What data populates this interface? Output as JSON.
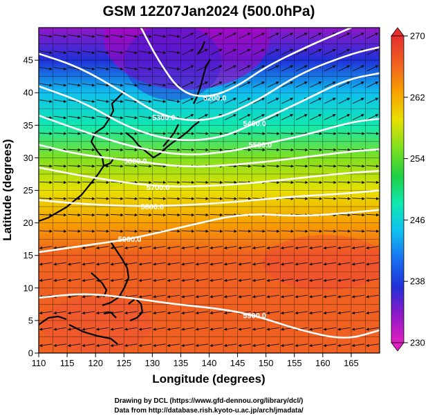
{
  "chart_data": {
    "type": "heatmap",
    "title": "GSM 12Z07Jan2024 (500.0hPa)",
    "xlabel": "Longitude (degrees)",
    "ylabel": "Latitude  (degrees)",
    "xlim": [
      110,
      170
    ],
    "ylim": [
      0,
      50
    ],
    "x_ticks": [
      110,
      115,
      120,
      125,
      130,
      135,
      140,
      145,
      150,
      155,
      160,
      165
    ],
    "y_ticks": [
      0,
      5,
      10,
      15,
      20,
      25,
      30,
      35,
      40,
      45
    ],
    "colorbar": {
      "range": [
        230,
        270
      ],
      "ticks": [
        230,
        238,
        246,
        254,
        262,
        270
      ],
      "colors": [
        "#e020c0",
        "#9018c8",
        "#2030d8",
        "#1870f0",
        "#10c0f0",
        "#10e8b0",
        "#20d040",
        "#80e020",
        "#e8e000",
        "#f8a000",
        "#f06020",
        "#e83030"
      ]
    },
    "temperature_bands": [
      {
        "lat": 50,
        "value": 232
      },
      {
        "lat": 45,
        "value": 236
      },
      {
        "lat": 40,
        "value": 244
      },
      {
        "lat": 35,
        "value": 249
      },
      {
        "lat": 30,
        "value": 254
      },
      {
        "lat": 25,
        "value": 259
      },
      {
        "lat": 20,
        "value": 263
      },
      {
        "lat": 15,
        "value": 266
      },
      {
        "lat": 10,
        "value": 267
      },
      {
        "lat": 5,
        "value": 267
      },
      {
        "lat": 0,
        "value": 267
      }
    ],
    "contour_labels": [
      {
        "text": "5200.0",
        "lon": 141,
        "lat": 39.2
      },
      {
        "text": "5300.0",
        "lon": 132,
        "lat": 36.2
      },
      {
        "text": "5400.0",
        "lon": 148,
        "lat": 35.3
      },
      {
        "text": "5500.0",
        "lon": 149,
        "lat": 32.0
      },
      {
        "text": "5600.0",
        "lon": 127,
        "lat": 29.5
      },
      {
        "text": "5700.0",
        "lon": 131,
        "lat": 25.5
      },
      {
        "text": "5800.0",
        "lon": 130,
        "lat": 22.5
      },
      {
        "text": "5900.0",
        "lon": 126,
        "lat": 17.5
      },
      {
        "text": "5900.0",
        "lon": 148,
        "lat": 5.8
      }
    ],
    "height_contours": [
      {
        "value": 5200,
        "points": [
          [
            128,
            50
          ],
          [
            131,
            45
          ],
          [
            135,
            40
          ],
          [
            140,
            39.2
          ],
          [
            145,
            41
          ],
          [
            150,
            44
          ],
          [
            157,
            47
          ],
          [
            165,
            50
          ]
        ]
      },
      {
        "value": 5300,
        "points": [
          [
            110,
            46
          ],
          [
            117,
            44
          ],
          [
            125,
            40
          ],
          [
            132,
            36.2
          ],
          [
            140,
            35.5
          ],
          [
            148,
            38.5
          ],
          [
            156,
            43
          ],
          [
            165,
            46
          ],
          [
            170,
            47
          ]
        ]
      },
      {
        "value": 5400,
        "points": [
          [
            110,
            41
          ],
          [
            118,
            38.5
          ],
          [
            126,
            34.5
          ],
          [
            134,
            32.5
          ],
          [
            142,
            33
          ],
          [
            148,
            35.3
          ],
          [
            156,
            38.5
          ],
          [
            164,
            42
          ],
          [
            170,
            43
          ]
        ]
      },
      {
        "value": 5500,
        "points": [
          [
            110,
            36.5
          ],
          [
            118,
            34
          ],
          [
            127,
            31.5
          ],
          [
            136,
            30.3
          ],
          [
            144,
            31
          ],
          [
            149,
            32
          ],
          [
            157,
            33.5
          ],
          [
            165,
            35.5
          ],
          [
            170,
            36
          ]
        ]
      },
      {
        "value": 5600,
        "points": [
          [
            110,
            32
          ],
          [
            117,
            30.5
          ],
          [
            127,
            29.5
          ],
          [
            136,
            28.5
          ],
          [
            146,
            29
          ],
          [
            156,
            30
          ],
          [
            165,
            31
          ],
          [
            170,
            31.3
          ]
        ]
      },
      {
        "value": 5700,
        "points": [
          [
            110,
            28.5
          ],
          [
            119,
            27
          ],
          [
            131,
            25.5
          ],
          [
            142,
            25.7
          ],
          [
            152,
            26.5
          ],
          [
            162,
            27.5
          ],
          [
            170,
            28
          ]
        ]
      },
      {
        "value": 5800,
        "points": [
          [
            110,
            23.5
          ],
          [
            119,
            22.8
          ],
          [
            130,
            22.5
          ],
          [
            142,
            23
          ],
          [
            154,
            24
          ],
          [
            164,
            24.5
          ],
          [
            170,
            25
          ]
        ]
      },
      {
        "value": 5900,
        "points": [
          [
            110,
            15.5
          ],
          [
            118,
            16.5
          ],
          [
            126,
            17.5
          ],
          [
            136,
            19.5
          ],
          [
            146,
            21.5
          ],
          [
            156,
            21
          ],
          [
            164,
            21.5
          ],
          [
            170,
            22
          ]
        ]
      },
      {
        "value": 5900,
        "points": [
          [
            110,
            8.5
          ],
          [
            118,
            9.2
          ],
          [
            126,
            8.5
          ],
          [
            134,
            7.5
          ],
          [
            142,
            6.8
          ],
          [
            148,
            5.8
          ],
          [
            156,
            3.5
          ],
          [
            164,
            2
          ],
          [
            170,
            3.5
          ]
        ]
      }
    ],
    "credits": [
      "Drawing by DCL (https://www.gfd-dennou.org/library/dcl/)",
      "Data from http://database.rish.kyoto-u.ac.jp/arch/jmadata/"
    ]
  }
}
